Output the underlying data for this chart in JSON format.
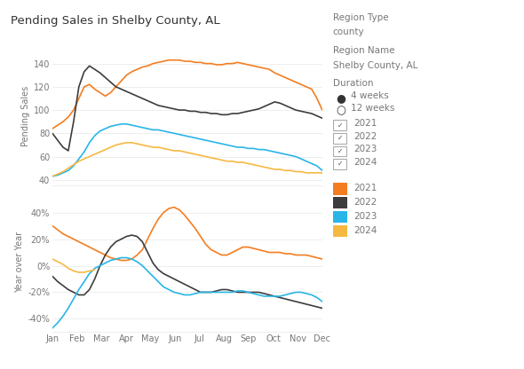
{
  "title": "Pending Sales in Shelby County, AL",
  "months": [
    "Jan",
    "Feb",
    "Mar",
    "Apr",
    "May",
    "Jun",
    "Jul",
    "Aug",
    "Sep",
    "Oct",
    "Nov",
    "Dec"
  ],
  "colors": {
    "2021": "#f47d20",
    "2022": "#3d3d3d",
    "2023": "#29b5e8",
    "2024": "#f5b942"
  },
  "upper_2021": [
    84,
    87,
    90,
    94,
    100,
    110,
    120,
    122,
    118,
    115,
    112,
    115,
    120,
    125,
    130,
    133,
    135,
    137,
    138,
    140,
    141,
    142,
    143,
    143,
    143,
    142,
    142,
    141,
    141,
    140,
    140,
    139,
    139,
    140,
    140,
    141,
    140,
    139,
    138,
    137,
    136,
    135,
    132,
    130,
    128,
    126,
    124,
    122,
    120,
    118,
    110,
    100
  ],
  "upper_2022": [
    80,
    74,
    68,
    65,
    90,
    120,
    133,
    138,
    135,
    132,
    128,
    124,
    120,
    118,
    116,
    114,
    112,
    110,
    108,
    106,
    104,
    103,
    102,
    101,
    100,
    100,
    99,
    99,
    98,
    98,
    97,
    97,
    96,
    96,
    97,
    97,
    98,
    99,
    100,
    101,
    103,
    105,
    107,
    106,
    104,
    102,
    100,
    99,
    98,
    97,
    95,
    93
  ],
  "upper_2023": [
    43,
    44,
    46,
    48,
    52,
    58,
    64,
    72,
    78,
    82,
    84,
    86,
    87,
    88,
    88,
    87,
    86,
    85,
    84,
    83,
    83,
    82,
    81,
    80,
    79,
    78,
    77,
    76,
    75,
    74,
    73,
    72,
    71,
    70,
    69,
    68,
    68,
    67,
    67,
    66,
    66,
    65,
    64,
    63,
    62,
    61,
    60,
    58,
    56,
    54,
    52,
    48
  ],
  "upper_2024": [
    43,
    45,
    47,
    50,
    53,
    56,
    58,
    60,
    62,
    64,
    66,
    68,
    70,
    71,
    72,
    72,
    71,
    70,
    69,
    68,
    68,
    67,
    66,
    65,
    65,
    64,
    63,
    62,
    61,
    60,
    59,
    58,
    57,
    56,
    56,
    55,
    55,
    54,
    53,
    52,
    51,
    50,
    49,
    49,
    48,
    48,
    47,
    47,
    46,
    46,
    46,
    46
  ],
  "lower_2021": [
    30,
    27,
    24,
    22,
    20,
    18,
    16,
    14,
    12,
    10,
    8,
    6,
    5,
    4,
    4,
    5,
    8,
    12,
    20,
    28,
    35,
    40,
    43,
    44,
    42,
    38,
    33,
    28,
    22,
    16,
    12,
    10,
    8,
    8,
    10,
    12,
    14,
    14,
    13,
    12,
    11,
    10,
    10,
    10,
    9,
    9,
    8,
    8,
    8,
    7,
    6,
    5
  ],
  "lower_2022": [
    -8,
    -12,
    -15,
    -18,
    -20,
    -22,
    -22,
    -18,
    -10,
    0,
    8,
    14,
    18,
    20,
    22,
    23,
    22,
    18,
    10,
    2,
    -3,
    -6,
    -8,
    -10,
    -12,
    -14,
    -16,
    -18,
    -20,
    -20,
    -20,
    -19,
    -18,
    -18,
    -19,
    -20,
    -20,
    -20,
    -20,
    -20,
    -21,
    -22,
    -23,
    -24,
    -25,
    -26,
    -27,
    -28,
    -29,
    -30,
    -31,
    -32
  ],
  "lower_2023": [
    -47,
    -43,
    -38,
    -32,
    -25,
    -18,
    -12,
    -6,
    -2,
    0,
    2,
    4,
    5,
    6,
    6,
    5,
    3,
    0,
    -4,
    -8,
    -12,
    -16,
    -18,
    -20,
    -21,
    -22,
    -22,
    -21,
    -20,
    -20,
    -20,
    -20,
    -20,
    -20,
    -20,
    -19,
    -19,
    -20,
    -21,
    -22,
    -23,
    -23,
    -23,
    -23,
    -22,
    -21,
    -20,
    -20,
    -21,
    -22,
    -24,
    -27
  ],
  "lower_2024": [
    5,
    3,
    1,
    -2,
    -4,
    -5,
    -5,
    -4,
    -3,
    null,
    null,
    null,
    null,
    null,
    null,
    null,
    null,
    null,
    null,
    null,
    null,
    null,
    null,
    null,
    null,
    null,
    null,
    null,
    null,
    null,
    null,
    null,
    null,
    null,
    null,
    null,
    null,
    null,
    null,
    null,
    null,
    null,
    null,
    null,
    null,
    null,
    null,
    null,
    null,
    null,
    null,
    null
  ],
  "upper_ylim": [
    35,
    155
  ],
  "upper_yticks": [
    40,
    60,
    80,
    100,
    120,
    140
  ],
  "lower_ylim": [
    -50,
    55
  ],
  "lower_yticks": [
    -40,
    -20,
    0,
    20,
    40
  ],
  "bg_color": "#ffffff",
  "grid_color": "#e8e8e8",
  "text_color": "#777777",
  "region_type": "county",
  "region_name": "Shelby County, AL"
}
